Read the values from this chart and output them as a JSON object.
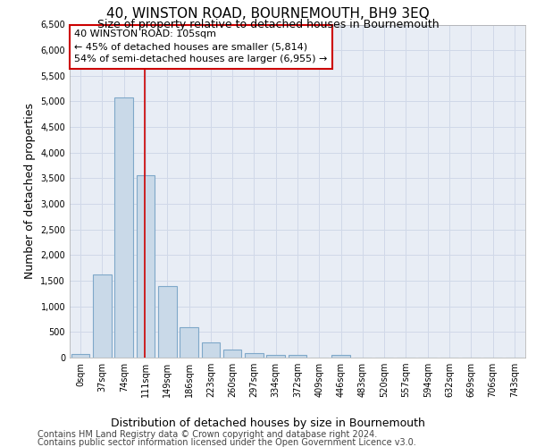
{
  "title": "40, WINSTON ROAD, BOURNEMOUTH, BH9 3EQ",
  "subtitle": "Size of property relative to detached houses in Bournemouth",
  "xlabel": "Distribution of detached houses by size in Bournemouth",
  "ylabel": "Number of detached properties",
  "footer_line1": "Contains HM Land Registry data © Crown copyright and database right 2024.",
  "footer_line2": "Contains public sector information licensed under the Open Government Licence v3.0.",
  "bar_labels": [
    "0sqm",
    "37sqm",
    "74sqm",
    "111sqm",
    "149sqm",
    "186sqm",
    "223sqm",
    "260sqm",
    "297sqm",
    "334sqm",
    "372sqm",
    "409sqm",
    "446sqm",
    "483sqm",
    "520sqm",
    "557sqm",
    "594sqm",
    "632sqm",
    "669sqm",
    "706sqm",
    "743sqm"
  ],
  "bar_values": [
    70,
    1630,
    5080,
    3560,
    1390,
    590,
    300,
    150,
    90,
    50,
    60,
    0,
    60,
    0,
    0,
    0,
    0,
    0,
    0,
    0,
    0
  ],
  "bar_color": "#c9d9e8",
  "bar_edgecolor": "#7fa8c9",
  "vline_x": 2.95,
  "vline_color": "#cc0000",
  "annotation_text": "40 WINSTON ROAD: 105sqm\n← 45% of detached houses are smaller (5,814)\n54% of semi-detached houses are larger (6,955) →",
  "annotation_box_color": "#ffffff",
  "annotation_box_edgecolor": "#cc0000",
  "ylim": [
    0,
    6500
  ],
  "yticks": [
    0,
    500,
    1000,
    1500,
    2000,
    2500,
    3000,
    3500,
    4000,
    4500,
    5000,
    5500,
    6000,
    6500
  ],
  "grid_color": "#d0d8e8",
  "bg_color": "#e8edf5",
  "title_fontsize": 11,
  "subtitle_fontsize": 9,
  "axis_label_fontsize": 9,
  "tick_fontsize": 7,
  "annotation_fontsize": 8,
  "footer_fontsize": 7
}
